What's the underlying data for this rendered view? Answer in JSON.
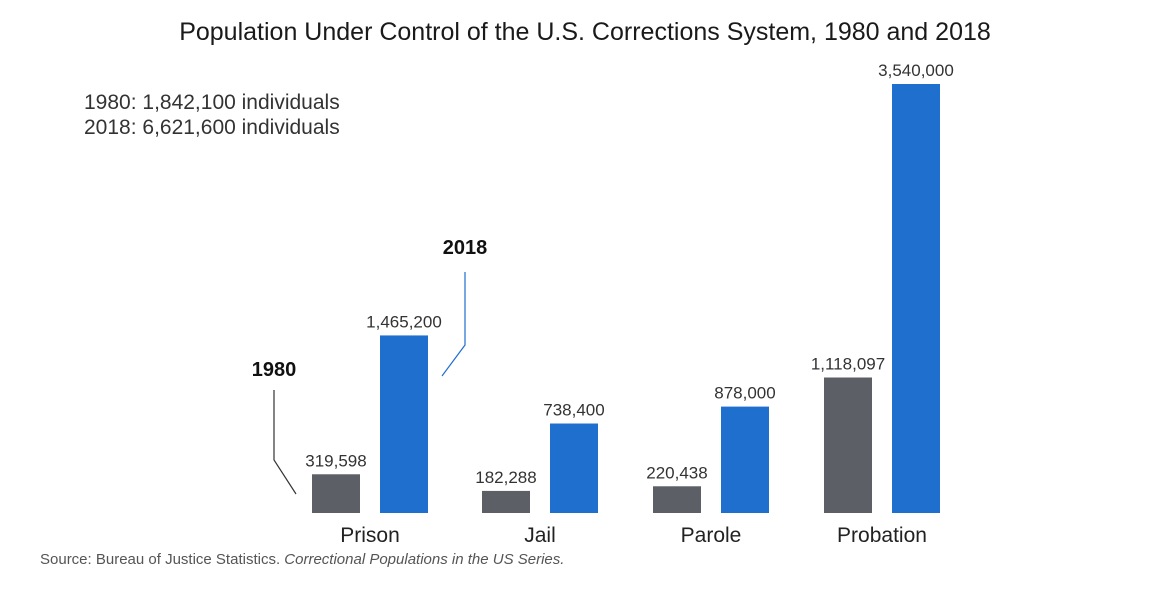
{
  "chart_data": {
    "type": "bar",
    "title": "Population Under Control of the U.S. Corrections System, 1980 and 2018",
    "summary": [
      "1980: 1,842,100 individuals",
      "2018: 6,621,600 individuals"
    ],
    "categories": [
      "Prison",
      "Jail",
      "Parole",
      "Probation"
    ],
    "series": [
      {
        "name": "1980",
        "color": "#5c5f66",
        "values": [
          319598,
          182288,
          220438,
          1118097
        ],
        "labels": [
          "319,598",
          "182,288",
          "220,438",
          "1,118,097"
        ]
      },
      {
        "name": "2018",
        "color": "#1f6fcf",
        "values": [
          1465200,
          738400,
          878000,
          3540000
        ],
        "labels": [
          "1,465,200",
          "738,400",
          "878,000",
          "3,540,000"
        ]
      }
    ],
    "ylim": [
      0,
      3540000
    ],
    "grid": false
  },
  "source": {
    "label": "Source",
    "text": ": Bureau of Justice Statistics. ",
    "italic": "Correctional Populations in the US Series."
  }
}
